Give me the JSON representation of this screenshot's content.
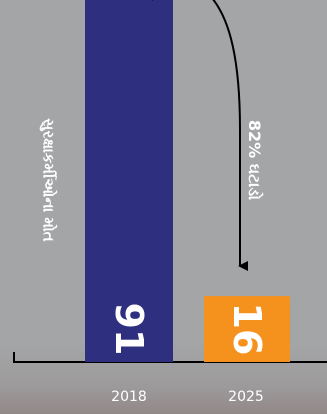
{
  "chart_data": {
    "type": "bar",
    "categories": [
      "2018",
      "2025"
    ],
    "values": [
      91,
      16
    ],
    "series_label": "સુરક્ષાકર્મીઓના મોત",
    "annotation": "82% ઘટાડો",
    "bar_colors": [
      "#2e2f7f",
      "#f5921e"
    ],
    "ylim": [
      0,
      100
    ],
    "grid": false,
    "legend": "none"
  }
}
